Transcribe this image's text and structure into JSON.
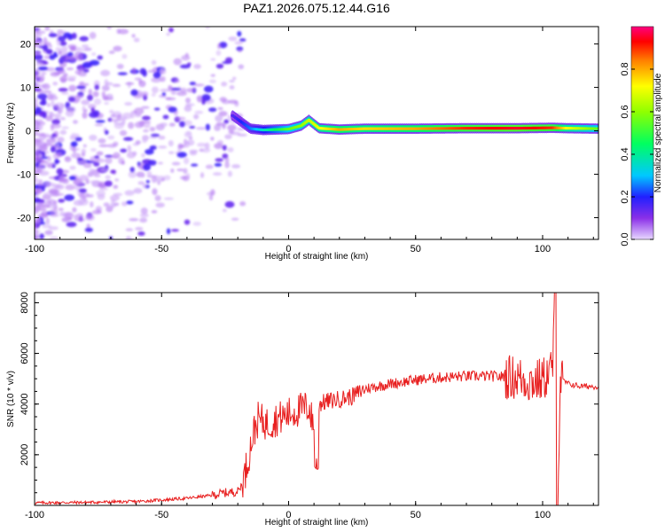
{
  "title": "PAZ1.2026.075.12.44.G16",
  "chart_data": [
    {
      "type": "heatmap",
      "name": "spectrogram",
      "xlabel": "Height of straight line (km)",
      "ylabel": "Frequency (Hz)",
      "xlim": [
        -100,
        122
      ],
      "ylim": [
        -25,
        24
      ],
      "xticks": [
        -100,
        -50,
        0,
        50,
        100
      ],
      "yticks": [
        -20,
        -10,
        0,
        10,
        20
      ],
      "ridge": [
        {
          "x": -22,
          "f": 3.5,
          "amp": 0.15
        },
        {
          "x": -15,
          "f": 0.5,
          "amp": 0.25
        },
        {
          "x": -10,
          "f": 0.2,
          "amp": 0.35
        },
        {
          "x": -5,
          "f": 0.3,
          "amp": 0.45
        },
        {
          "x": 0,
          "f": 0.4,
          "amp": 0.55
        },
        {
          "x": 5,
          "f": 1.2,
          "amp": 0.6
        },
        {
          "x": 8,
          "f": 2.5,
          "amp": 0.65
        },
        {
          "x": 12,
          "f": 0.6,
          "amp": 0.7
        },
        {
          "x": 20,
          "f": 0.3,
          "amp": 0.8
        },
        {
          "x": 30,
          "f": 0.5,
          "amp": 0.75
        },
        {
          "x": 50,
          "f": 0.5,
          "amp": 0.8
        },
        {
          "x": 70,
          "f": 0.6,
          "amp": 0.9
        },
        {
          "x": 90,
          "f": 0.6,
          "amp": 0.95
        },
        {
          "x": 104,
          "f": 0.7,
          "amp": 0.9
        },
        {
          "x": 110,
          "f": 0.6,
          "amp": 0.7
        },
        {
          "x": 122,
          "f": 0.5,
          "amp": 0.55
        }
      ],
      "colorbar": {
        "label": "Normalized spectral amplitude",
        "range": [
          0,
          1
        ],
        "ticks": [
          0.0,
          0.2,
          0.4,
          0.6,
          0.8
        ],
        "tick_labels": [
          "0.0",
          "0.2",
          "0.4",
          "0.6",
          "0.8"
        ]
      }
    },
    {
      "type": "line",
      "name": "snr",
      "xlabel": "Height of straight line (km)",
      "ylabel": "SNR (10 * v/v)",
      "xlim": [
        -100,
        122
      ],
      "ylim": [
        0,
        8400
      ],
      "xticks": [
        -100,
        -50,
        0,
        50,
        100
      ],
      "yticks": [
        2000,
        4000,
        6000,
        8000
      ],
      "color": "#e82020",
      "x": [
        -100,
        -80,
        -60,
        -40,
        -30,
        -25,
        -20,
        -18,
        -16,
        -14,
        -12,
        -10,
        -8,
        -5,
        -2,
        0,
        5,
        8,
        10,
        12,
        15,
        20,
        25,
        30,
        40,
        50,
        60,
        70,
        80,
        90,
        95,
        100,
        103,
        104,
        105,
        106,
        107,
        110,
        115,
        122
      ],
      "values": [
        100,
        120,
        150,
        280,
        400,
        500,
        550,
        900,
        1800,
        2800,
        3400,
        3300,
        3200,
        3400,
        3500,
        3600,
        3800,
        3900,
        3000,
        4000,
        4100,
        4200,
        4300,
        4600,
        4800,
        4950,
        5050,
        5100,
        5100,
        5050,
        4900,
        4950,
        5300,
        5600,
        8300,
        400,
        5000,
        4800,
        4700,
        4700
      ],
      "notes": [
        {
          "x": 11,
          "value": 1300
        },
        {
          "x": 105,
          "value": 250
        }
      ]
    }
  ]
}
